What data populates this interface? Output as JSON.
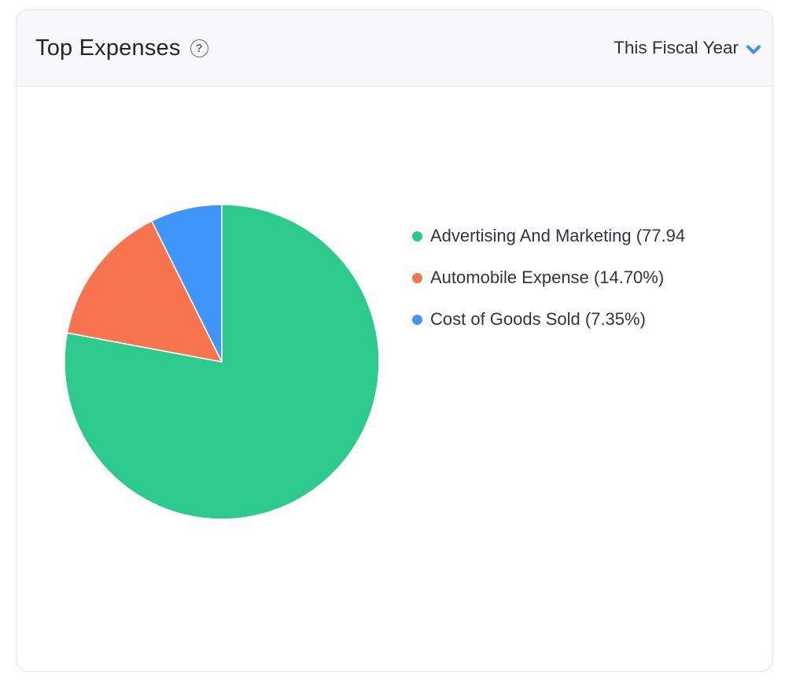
{
  "widget": {
    "title": "Top Expenses",
    "help_icon": "question-mark",
    "period_selector": {
      "label": "This Fiscal Year"
    }
  },
  "chart_data": {
    "type": "pie",
    "title": "Top Expenses",
    "period": "This Fiscal Year",
    "start_angle_deg": 0,
    "direction": "clockwise",
    "legend_position": "right",
    "slices": [
      {
        "label": "Advertising And Marketing",
        "percent": 77.94,
        "color": "#2cca8c",
        "legend_text": "Advertising And Marketing (77.94"
      },
      {
        "label": "Automobile Expense",
        "percent": 14.7,
        "color": "#f7744e",
        "legend_text": "Automobile Expense (14.70%)"
      },
      {
        "label": "Cost of Goods Sold",
        "percent": 7.35,
        "color": "#4095fb",
        "legend_text": "Cost of Goods Sold (7.35%)"
      }
    ],
    "slice_separator_color": "#ffffff"
  },
  "colors": {
    "accent_blue": "#408dfb",
    "header_bg": "#f8f8fb",
    "card_border": "#e4e4ee",
    "title_text": "#23252a",
    "legend_text": "#32353b"
  }
}
